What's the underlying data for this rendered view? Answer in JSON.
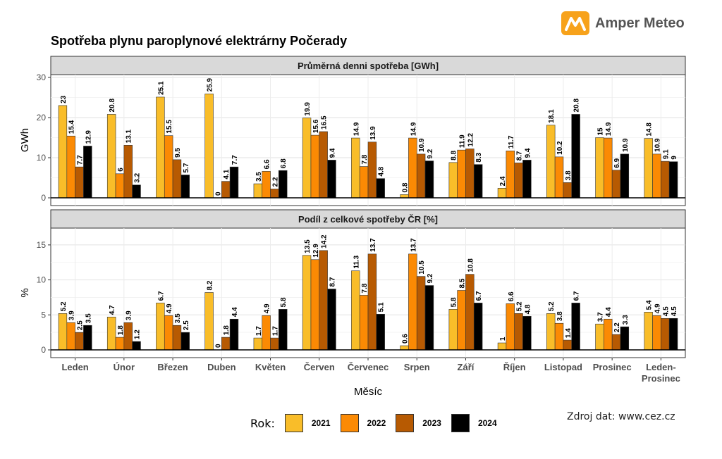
{
  "title": "Spotřeba plynu paroplynové elektrárny Počerady",
  "brand": "Amper Meteo",
  "source": "Zdroj dat: www.cez.cz",
  "colors": {
    "2021": "#f9bd29",
    "2022": "#fb8a04",
    "2023": "#b75a02",
    "2024": "#000000"
  },
  "legend": {
    "title": "Rok:",
    "items": [
      "2021",
      "2022",
      "2023",
      "2024"
    ]
  },
  "chart_data": {
    "type": "bar",
    "xlabel": "Měsíc",
    "categories": [
      "Leden",
      "Únor",
      "Březen",
      "Duben",
      "Květen",
      "Červen",
      "Červenec",
      "Srpen",
      "Září",
      "Říjen",
      "Listopad",
      "Prosinec",
      "Leden-\nProsinec"
    ],
    "panels": [
      {
        "strip": "Průměrná denni spotřeba [GWh]",
        "ylabel": "GWh",
        "ylim": [
          0,
          30
        ],
        "ticks": [
          0,
          10,
          20,
          30
        ],
        "series": [
          {
            "name": "2021",
            "values": [
              23,
              20.8,
              25.1,
              25.9,
              3.5,
              19.9,
              14.9,
              0.8,
              8.8,
              2.4,
              18.1,
              15,
              14.8
            ]
          },
          {
            "name": "2022",
            "values": [
              15.4,
              6,
              15.5,
              0,
              6.6,
              15.6,
              7.8,
              14.9,
              11.9,
              11.7,
              10.2,
              14.9,
              10.9
            ]
          },
          {
            "name": "2023",
            "values": [
              7.7,
              13.1,
              9.5,
              4.1,
              2.2,
              16.5,
              13.9,
              10.9,
              12.2,
              8.7,
              3.8,
              6.9,
              9.1
            ]
          },
          {
            "name": "2024",
            "values": [
              12.9,
              3.2,
              5.7,
              7.7,
              6.8,
              9.4,
              4.8,
              9.2,
              8.3,
              9.4,
              20.8,
              10.9,
              9
            ]
          }
        ]
      },
      {
        "strip": "Podíl z celkové spotřeby ČR [%]",
        "ylabel": "%",
        "ylim": [
          0,
          17
        ],
        "ticks": [
          0,
          5,
          10,
          15
        ],
        "series": [
          {
            "name": "2021",
            "values": [
              5.2,
              4.7,
              6.7,
              8.2,
              1.7,
              13.5,
              11.3,
              0.6,
              5.8,
              1,
              5.2,
              3.7,
              5.4
            ]
          },
          {
            "name": "2022",
            "values": [
              3.9,
              1.8,
              4.9,
              0,
              4.9,
              12.9,
              7.8,
              13.7,
              8.5,
              6.6,
              3.8,
              4.4,
              4.9
            ]
          },
          {
            "name": "2023",
            "values": [
              2.5,
              3.9,
              3.5,
              1.8,
              1.7,
              14.2,
              13.7,
              10.5,
              10.8,
              5.2,
              1.4,
              2.2,
              4.5
            ]
          },
          {
            "name": "2024",
            "values": [
              3.5,
              1.2,
              2.5,
              4.4,
              5.8,
              8.7,
              5.1,
              9.2,
              6.7,
              4.8,
              6.7,
              3.3,
              4.5
            ]
          }
        ]
      }
    ]
  }
}
